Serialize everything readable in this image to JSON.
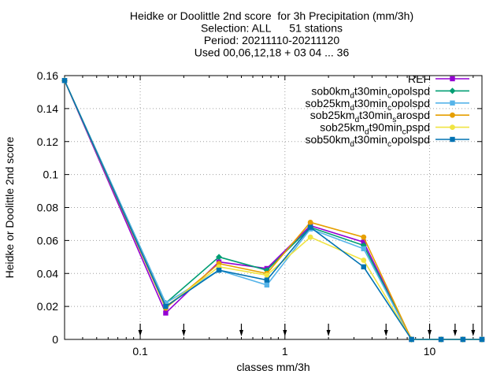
{
  "chart_data": {
    "type": "line",
    "title_lines": [
      "Heidke or Doolittle 2nd score  for 3h Precipitation (mm/3h)",
      "Selection: ALL      51 stations",
      "Period: 20211110-20211120",
      "Used 00,06,12,18 + 03 04 ... 36"
    ],
    "xlabel": "classes mm/3h",
    "ylabel": "Heidke or Doolittle 2nd score",
    "x_scale": "log",
    "xlim": [
      0.03,
      23
    ],
    "ylim": [
      0,
      0.16
    ],
    "x_ticks": [
      {
        "value": 0.1,
        "label": "0.1"
      },
      {
        "value": 1,
        "label": "1"
      },
      {
        "value": 10,
        "label": "10"
      }
    ],
    "y_ticks": [
      {
        "value": 0,
        "label": "0"
      },
      {
        "value": 0.02,
        "label": "0.02"
      },
      {
        "value": 0.04,
        "label": "0.04"
      },
      {
        "value": 0.06,
        "label": "0.06"
      },
      {
        "value": 0.08,
        "label": "0.08"
      },
      {
        "value": 0.1,
        "label": "0.1"
      },
      {
        "value": 0.12,
        "label": "0.12"
      },
      {
        "value": 0.14,
        "label": "0.14"
      },
      {
        "value": 0.16,
        "label": "0.16"
      }
    ],
    "grid": true,
    "legend_position": "top-right",
    "threshold_markers": [
      0.1,
      0.2,
      0.5,
      1,
      2,
      5,
      10,
      15,
      20
    ],
    "x": [
      0.03,
      0.15,
      0.35,
      0.75,
      1.5,
      3.5,
      7.5,
      12,
      17,
      23
    ],
    "series": [
      {
        "name": "REF",
        "label_parts": [
          [
            "REF",
            ""
          ]
        ],
        "color": "#9400d3",
        "marker": "square",
        "values": [
          0.157,
          0.016,
          0.047,
          0.043,
          0.069,
          0.059,
          0.0,
          0.0,
          0.0,
          0.0
        ]
      },
      {
        "name": "sob0km_d t30min_c opolspd",
        "label_parts": [
          [
            "sob0km",
            ""
          ],
          [
            "d",
            "sub"
          ],
          [
            "t30min",
            ""
          ],
          [
            "c",
            "sub"
          ],
          [
            "opolspd",
            ""
          ]
        ],
        "color": "#009e73",
        "marker": "diamond",
        "values": [
          0.157,
          0.022,
          0.05,
          0.042,
          0.068,
          0.057,
          0.0,
          0.0,
          0.0,
          0.0
        ]
      },
      {
        "name": "sob25km_d t30min_c opolspd",
        "label_parts": [
          [
            "sob25km",
            ""
          ],
          [
            "d",
            "sub"
          ],
          [
            "t30min",
            ""
          ],
          [
            "c",
            "sub"
          ],
          [
            "opolspd",
            ""
          ]
        ],
        "color": "#56b4e9",
        "marker": "square",
        "values": [
          0.157,
          0.022,
          0.042,
          0.033,
          0.067,
          0.055,
          0.0,
          0.0,
          0.0,
          0.0
        ]
      },
      {
        "name": "sob25km_d t30min_s arospd",
        "label_parts": [
          [
            "sob25km",
            ""
          ],
          [
            "d",
            "sub"
          ],
          [
            "t30min",
            ""
          ],
          [
            "s",
            "sub"
          ],
          [
            "arospd",
            ""
          ]
        ],
        "color": "#e69f00",
        "marker": "circle",
        "values": [
          0.157,
          0.019,
          0.046,
          0.04,
          0.071,
          0.062,
          0.0,
          0.0,
          0.0,
          0.0
        ]
      },
      {
        "name": "sob25km_d t90min_c pspd",
        "label_parts": [
          [
            "sob25km",
            ""
          ],
          [
            "d",
            "sub"
          ],
          [
            "t90min",
            ""
          ],
          [
            "c",
            "sub"
          ],
          [
            "pspd",
            ""
          ]
        ],
        "color": "#f0e442",
        "marker": "circle",
        "values": [
          0.157,
          0.02,
          0.044,
          0.039,
          0.062,
          0.048,
          0.0,
          0.0,
          0.0,
          0.0
        ]
      },
      {
        "name": "sob50km_d t30min_c opolspd",
        "label_parts": [
          [
            "sob50km",
            ""
          ],
          [
            "d",
            "sub"
          ],
          [
            "t30min",
            ""
          ],
          [
            "c",
            "sub"
          ],
          [
            "opolspd",
            ""
          ]
        ],
        "color": "#0072b2",
        "marker": "square",
        "values": [
          0.157,
          0.02,
          0.042,
          0.036,
          0.068,
          0.044,
          0.0,
          0.0,
          0.0,
          0.0
        ]
      }
    ]
  }
}
